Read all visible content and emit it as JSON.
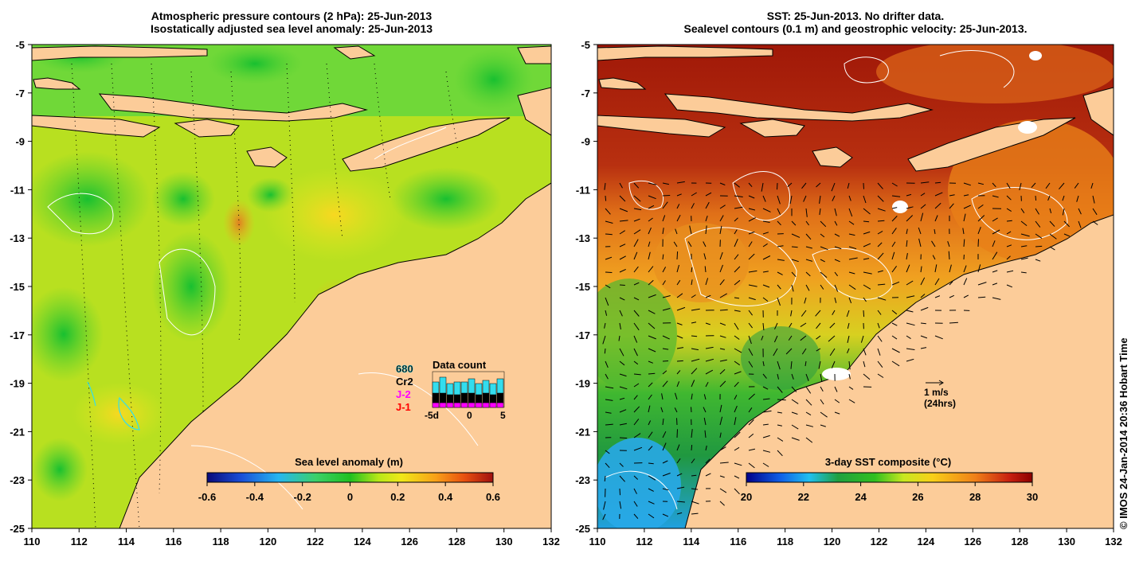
{
  "left_panel": {
    "title_line1": "Atmospheric pressure contours (2 hPa): 25-Jun-2013",
    "title_line2": "Isostatically adjusted sea level anomaly: 25-Jun-2013",
    "colorbar_label": "Sea level anomaly (m)",
    "colorbar_ticks": [
      "-0.6",
      "-0.4",
      "-0.2",
      "0",
      "0.2",
      "0.4",
      "0.6"
    ],
    "inset": {
      "title": "Data count",
      "legend": [
        {
          "label": "680",
          "color": "#33ddee"
        },
        {
          "label": "Cr2",
          "color": "#000000"
        },
        {
          "label": "J-2",
          "color": "#ff00ff"
        },
        {
          "label": "J-1",
          "color": "#ff0000"
        }
      ],
      "x_ticks": [
        "-5d",
        "0",
        "5"
      ]
    }
  },
  "right_panel": {
    "title_line1": "SST: 25-Jun-2013. No drifter data.",
    "title_line2": "Sealevel contours (0.1 m) and geostrophic velocity: 25-Jun-2013.",
    "colorbar_label": "3-day SST composite (°C)",
    "colorbar_ticks": [
      "20",
      "22",
      "24",
      "26",
      "28",
      "30"
    ],
    "velocity_scale_label1": "1 m/s",
    "velocity_scale_label2": "(24hrs)"
  },
  "axes": {
    "x_ticks": [
      "110",
      "112",
      "114",
      "116",
      "118",
      "120",
      "122",
      "124",
      "126",
      "128",
      "130",
      "132"
    ],
    "y_ticks": [
      "-5",
      "-7",
      "-9",
      "-11",
      "-13",
      "-15",
      "-17",
      "-19",
      "-21",
      "-23",
      "-25"
    ]
  },
  "credit": "© IMOS 24-Jan-2014 20:36 Hobart Time",
  "colors": {
    "land": "#fccc99",
    "sla_scale": [
      "#0a0a7a",
      "#1a4fd8",
      "#26b6f0",
      "#3cd06a",
      "#20c020",
      "#8ee010",
      "#f0e818",
      "#f8b018",
      "#e86010",
      "#a01010"
    ],
    "sst_scale": [
      "#00008a",
      "#1060e8",
      "#20c0f0",
      "#20a040",
      "#30c020",
      "#c8e820",
      "#f8d018",
      "#f08018",
      "#c82010",
      "#8c0000"
    ]
  }
}
